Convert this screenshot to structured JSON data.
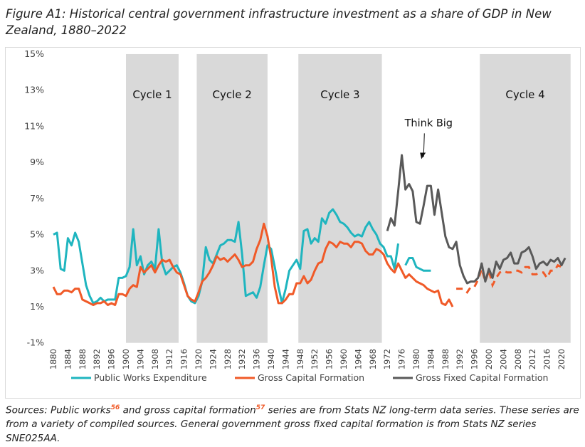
{
  "title": "Figure A1: Historical central government infrastructure investment as a share of GDP in New Zealand, 1880–2022",
  "sources": {
    "part1": "Sources: Public works",
    "ref1": "56",
    "part2": " and gross capital formation",
    "ref2": "57",
    "part3": " series are from Stats NZ long-term data series. These series are from a variety of compiled sources. General government gross fixed capital formation is from Stats NZ series SNE025AA."
  },
  "chart_data": {
    "type": "line",
    "title": "Figure A1: Historical central government infrastructure investment as a share of GDP in New Zealand, 1880–2022",
    "xlabel": "",
    "ylabel": "",
    "ylim": [
      -1,
      15
    ],
    "xlim": [
      1880,
      2022
    ],
    "y_ticks": [
      "15%",
      "13%",
      "11%",
      "9%",
      "7%",
      "5%",
      "3%",
      "1%",
      "-1%"
    ],
    "y_tick_values": [
      15,
      13,
      11,
      9,
      7,
      5,
      3,
      1,
      -1
    ],
    "x_ticks": [
      1880,
      1884,
      1888,
      1892,
      1896,
      1900,
      1904,
      1908,
      1912,
      1916,
      1920,
      1924,
      1928,
      1932,
      1936,
      1940,
      1944,
      1948,
      1952,
      1956,
      1960,
      1964,
      1968,
      1972,
      1976,
      1980,
      1984,
      1988,
      1992,
      1996,
      2000,
      2004,
      2008,
      2012,
      2016,
      2020
    ],
    "grid": false,
    "legend_placement": "bottom",
    "shaded_periods": [
      {
        "label": "Cycle 1",
        "start": 1900,
        "end": 1914.5
      },
      {
        "label": "Cycle 2",
        "start": 1919.5,
        "end": 1939
      },
      {
        "label": "Cycle 3",
        "start": 1947.5,
        "end": 1970.5
      },
      {
        "label": "Cycle 4",
        "start": 1997.5,
        "end": 2022.5
      }
    ],
    "annotation": {
      "text": "Think Big",
      "x": 1983,
      "y": 11,
      "arrow_to": [
        1982,
        9.3
      ]
    },
    "series": [
      {
        "name": "Public Works Expenditure",
        "color": "#1fb5bf",
        "start_year": 1880,
        "values": [
          5.0,
          5.1,
          3.1,
          3.0,
          4.8,
          4.4,
          5.1,
          4.6,
          3.4,
          2.2,
          1.6,
          1.2,
          1.3,
          1.5,
          1.3,
          1.4,
          1.4,
          1.4,
          2.6,
          2.6,
          2.7,
          3.2,
          5.3,
          3.3,
          3.8,
          2.8,
          3.3,
          3.5,
          3.1,
          5.3,
          3.4,
          2.8,
          3.0,
          3.2,
          3.3,
          2.9,
          2.3,
          1.6,
          1.3,
          1.2,
          1.6,
          2.4,
          4.3,
          3.6,
          3.4,
          3.9,
          4.4,
          4.5,
          4.7,
          4.7,
          4.6,
          5.7,
          3.9,
          1.6,
          1.7,
          1.8,
          1.5,
          2.1,
          3.3,
          4.4,
          4.2,
          3.2,
          2.1,
          1.2,
          2.0,
          3.0,
          3.3,
          3.6,
          3.1,
          5.2,
          5.3,
          4.5,
          4.8,
          4.6,
          5.9,
          5.6,
          6.2,
          6.4,
          6.1,
          5.7,
          5.6,
          5.4,
          5.1,
          4.9,
          5.0,
          4.9,
          5.4,
          5.7,
          5.3,
          5.0,
          4.5,
          4.3,
          3.8,
          3.8,
          3.1,
          4.5,
          null,
          3.3,
          3.7,
          3.7,
          3.2,
          3.1,
          3.0,
          3.0,
          3.0
        ]
      },
      {
        "name": "Gross Capital Formation",
        "color": "#f05a28",
        "start_year": 1880,
        "dashed_from": 1991,
        "values": [
          2.1,
          1.7,
          1.7,
          1.9,
          1.9,
          1.8,
          2.0,
          2.0,
          1.4,
          1.3,
          1.2,
          1.1,
          1.2,
          1.2,
          1.3,
          1.1,
          1.2,
          1.1,
          1.7,
          1.7,
          1.6,
          2.0,
          2.2,
          2.1,
          3.2,
          2.9,
          3.1,
          3.3,
          2.9,
          3.3,
          3.6,
          3.5,
          3.6,
          3.2,
          2.9,
          2.8,
          2.2,
          1.6,
          1.4,
          1.3,
          1.8,
          2.4,
          2.6,
          2.9,
          3.3,
          3.8,
          3.6,
          3.7,
          3.5,
          3.7,
          3.9,
          3.6,
          3.2,
          3.3,
          3.3,
          3.5,
          4.2,
          4.7,
          5.6,
          4.9,
          3.7,
          2.1,
          1.2,
          1.2,
          1.4,
          1.7,
          1.7,
          2.3,
          2.3,
          2.7,
          2.3,
          2.5,
          3.0,
          3.4,
          3.5,
          4.2,
          4.6,
          4.5,
          4.3,
          4.6,
          4.5,
          4.5,
          4.3,
          4.6,
          4.6,
          4.5,
          4.1,
          3.9,
          3.9,
          4.2,
          4.1,
          3.9,
          3.4,
          3.1,
          2.9,
          3.4,
          3.0,
          2.6,
          2.8,
          2.6,
          2.4,
          2.3,
          2.2,
          2.0,
          1.9,
          1.8,
          1.9,
          1.2,
          1.1,
          1.4,
          1.0,
          2.0,
          2.0,
          2.0,
          1.8,
          2.1,
          2.1,
          2.5,
          3.1,
          2.4,
          3.0,
          2.2,
          2.6,
          2.9,
          3.0,
          2.9,
          2.9,
          3.0,
          3.0,
          2.9,
          3.2,
          3.2,
          2.8,
          2.8,
          2.9,
          2.9,
          2.6,
          3.0,
          3.0,
          3.3,
          3.2,
          3.2
        ]
      },
      {
        "name": "Gross Fixed Capital Formation",
        "color": "#595959",
        "start_year": 1972,
        "values": [
          5.2,
          5.9,
          5.5,
          7.4,
          9.4,
          7.5,
          7.8,
          7.4,
          5.7,
          5.6,
          6.6,
          7.7,
          7.7,
          6.1,
          7.5,
          6.2,
          4.9,
          4.3,
          4.2,
          4.6,
          3.3,
          2.7,
          2.3,
          2.4,
          2.4,
          2.6,
          3.4,
          2.4,
          3.1,
          2.6,
          3.5,
          3.1,
          3.6,
          3.7,
          4.0,
          3.4,
          3.4,
          4.0,
          4.1,
          4.3,
          3.8,
          3.1,
          3.4,
          3.5,
          3.3,
          3.6,
          3.5,
          3.7,
          3.3,
          3.7
        ]
      }
    ]
  }
}
